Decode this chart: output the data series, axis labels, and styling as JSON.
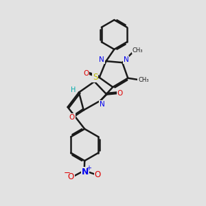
{
  "bg_color": "#e2e2e2",
  "bond_color": "#1a1a1a",
  "bond_width": 1.8,
  "dbo": 0.055,
  "atom_colors": {
    "N": "#0000ee",
    "O": "#dd0000",
    "S": "#bbbb00",
    "H": "#00aaaa",
    "C": "#1a1a1a"
  },
  "font_size": 7.5,
  "fig_size": [
    3.0,
    3.0
  ],
  "dpi": 100,
  "xlim": [
    0,
    10
  ],
  "ylim": [
    0,
    10
  ]
}
